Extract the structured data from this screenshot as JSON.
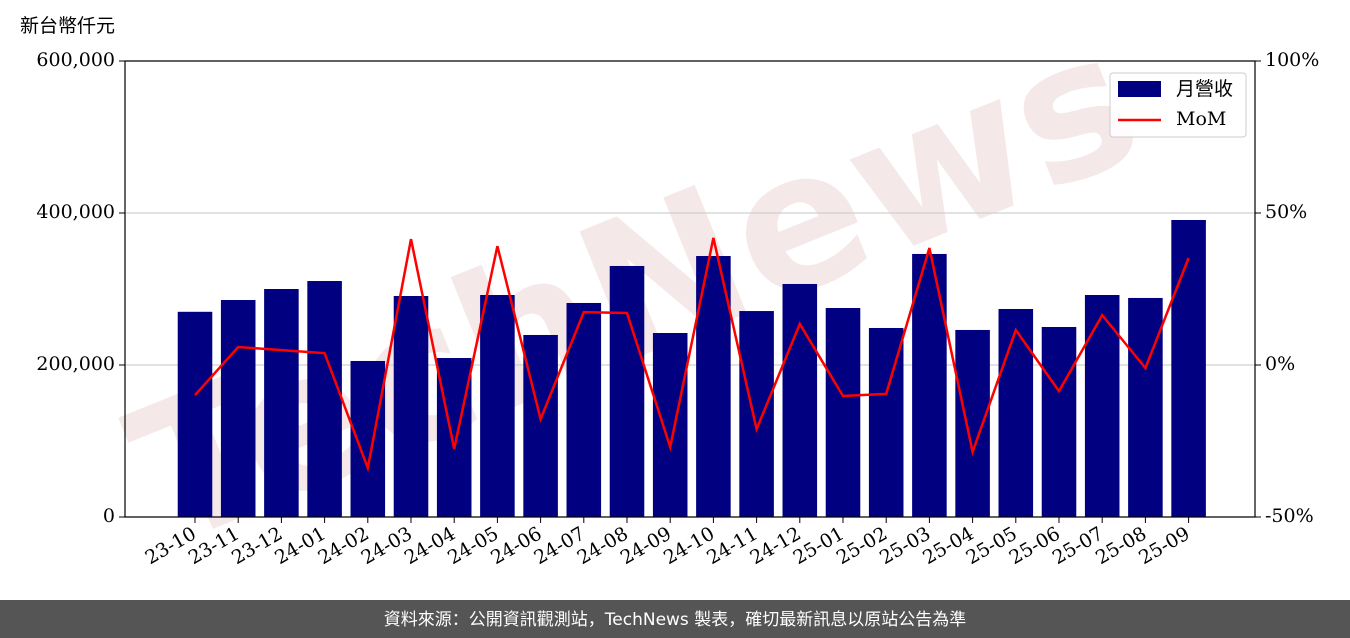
{
  "chart_data": {
    "type": "bar-line",
    "y_label": "新台幣仟元",
    "watermark": "TechNews",
    "categories": [
      "23-10",
      "23-11",
      "23-12",
      "24-01",
      "24-02",
      "24-03",
      "24-04",
      "24-05",
      "24-06",
      "24-07",
      "24-08",
      "24-09",
      "24-10",
      "24-11",
      "24-12",
      "25-01",
      "25-02",
      "25-03",
      "25-04",
      "25-05",
      "25-06",
      "25-07",
      "25-08",
      "25-09"
    ],
    "series": [
      {
        "name": "月營收",
        "type": "bar",
        "color": "#000080",
        "values": [
          270000,
          285500,
          300000,
          310500,
          205300,
          290800,
          209200,
          292100,
          239500,
          281600,
          330300,
          242100,
          343400,
          271000,
          306600,
          275000,
          248700,
          346100,
          246100,
          273700,
          250000,
          292100,
          288200,
          390800
        ]
      },
      {
        "name": "MoM",
        "type": "line",
        "axis": "y2",
        "color": "#ff0000",
        "values": [
          -9.9,
          5.9,
          4.9,
          3.9,
          -33.9,
          41.4,
          -27.6,
          39.1,
          -17.8,
          17.4,
          17.1,
          -27.0,
          41.8,
          -21.1,
          13.5,
          -10.2,
          -9.5,
          38.5,
          -28.6,
          11.5,
          -8.6,
          16.4,
          -1.0,
          35.2
        ]
      }
    ],
    "ylim": [
      0,
      600000
    ],
    "yticks": [
      0,
      {
        "value": 200000,
        "label": "200,000"
      },
      {
        "value": 400000,
        "label": "400,000"
      },
      {
        "value": 600000,
        "label": "600,000"
      }
    ],
    "y2lim": [
      -50,
      100
    ],
    "y2ticks": [
      {
        "value": -50,
        "label": "-50%"
      },
      {
        "value": 0,
        "label": "0%"
      },
      {
        "value": 50,
        "label": "50%"
      },
      {
        "value": 100,
        "label": "100%"
      }
    ],
    "grid": true,
    "legend": "upper right",
    "footer": "資料來源：公開資訊觀測站，TechNews 製表，確切最新訊息以原站公告為準"
  }
}
